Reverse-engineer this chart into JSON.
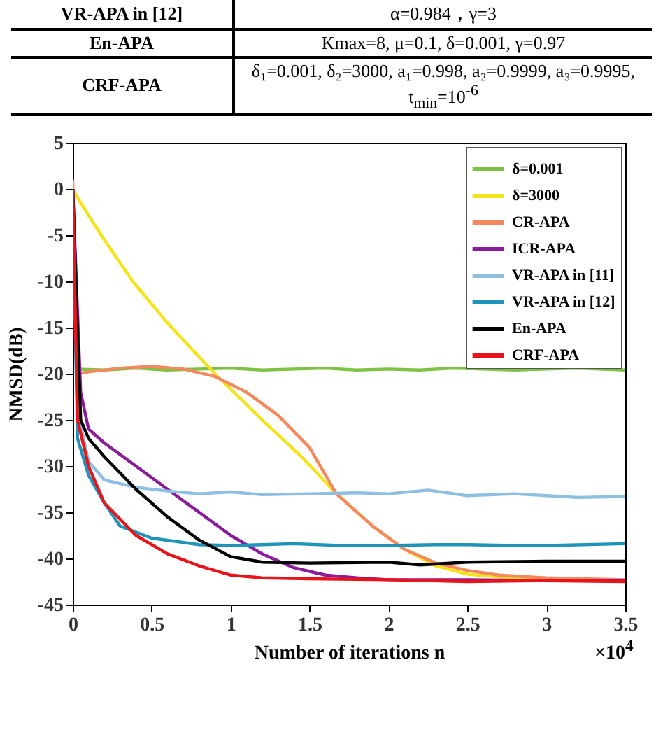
{
  "chart_data": {
    "type": "line",
    "xlabel": "Number of iterations n",
    "ylabel": "NMSD(dB)",
    "annotations": [
      "VR-APA in [12]",
      "α=0.984，γ=3",
      "En-APA",
      "Kmax=8, μ=0.1, δ=0.001, γ=0.97",
      "CRF-APA",
      "δ₁=0.001, δ₂=3000, a₁=0.998, a₂=0.9999, a₃=0.9995, t$_{min}$=10$^{-6}$",
      "×10$^{4}$"
    ],
    "xlim": [
      0,
      3.5
    ],
    "xticks": [
      0,
      0.5,
      1,
      1.5,
      2,
      2.5,
      3,
      3.5
    ],
    "ylim": [
      -45,
      5
    ],
    "yticks": [
      -45,
      -40,
      -35,
      -30,
      -25,
      -20,
      -15,
      -10,
      -5,
      0,
      5
    ],
    "grid": false,
    "legend": "top right",
    "line_style": "solid",
    "marker": "none",
    "series": [
      {
        "name": "δ=0.001",
        "color": "#7dc242",
        "x": [
          0,
          0.03,
          0.2,
          0.4,
          0.6,
          0.8,
          1.0,
          1.2,
          1.4,
          1.6,
          1.8,
          2.0,
          2.2,
          2.4,
          2.6,
          2.8,
          3.0,
          3.2,
          3.5
        ],
        "values": [
          0,
          -19.5,
          -19.6,
          -19.4,
          -19.6,
          -19.5,
          -19.4,
          -19.6,
          -19.5,
          -19.4,
          -19.6,
          -19.5,
          -19.6,
          -19.4,
          -19.5,
          -19.6,
          -19.5,
          -19.4,
          -19.6
        ]
      },
      {
        "name": "δ=3000",
        "color": "#f5e31a",
        "x": [
          0,
          0.05,
          0.18,
          0.38,
          0.6,
          0.9,
          1.2,
          1.45,
          1.67,
          1.9,
          2.1,
          2.3,
          2.5,
          2.7,
          3.0,
          3.5
        ],
        "values": [
          0,
          -1.5,
          -5,
          -10,
          -14.5,
          -20,
          -25,
          -29,
          -33,
          -36.5,
          -39,
          -40.8,
          -41.7,
          -42,
          -42.2,
          -42.4
        ]
      },
      {
        "name": "CR-APA",
        "color": "#f4895f",
        "x": [
          0,
          0.03,
          0.1,
          0.3,
          0.5,
          0.7,
          0.9,
          1.1,
          1.3,
          1.5,
          1.67,
          1.9,
          2.1,
          2.3,
          2.5,
          2.7,
          3.0,
          3.5
        ],
        "values": [
          1,
          -20,
          -19.8,
          -19.4,
          -19.2,
          -19.5,
          -20.3,
          -22,
          -24.5,
          -28,
          -33,
          -36.5,
          -39,
          -40.5,
          -41.3,
          -41.8,
          -42.1,
          -42.3
        ]
      },
      {
        "name": "ICR-APA",
        "color": "#8b1a9c",
        "x": [
          0,
          0.05,
          0.1,
          0.2,
          0.4,
          0.6,
          0.8,
          1.0,
          1.2,
          1.4,
          1.6,
          1.8,
          2.0,
          2.5,
          3.0,
          3.5
        ],
        "values": [
          0,
          -22,
          -26,
          -27.5,
          -30,
          -32.5,
          -35,
          -37.5,
          -39.5,
          -41,
          -41.8,
          -42.1,
          -42.3,
          -42.3,
          -42.4,
          -42.4
        ]
      },
      {
        "name": "VR-APA in [11]",
        "color": "#8fbfe0",
        "x": [
          0,
          0.03,
          0.1,
          0.2,
          0.4,
          0.6,
          0.8,
          1.0,
          1.2,
          1.5,
          1.8,
          2.0,
          2.25,
          2.5,
          2.8,
          3.0,
          3.2,
          3.5
        ],
        "values": [
          0,
          -24,
          -29.5,
          -31.5,
          -32.3,
          -32.7,
          -33,
          -32.8,
          -33.1,
          -33,
          -32.9,
          -33,
          -32.6,
          -33.2,
          -33,
          -33.2,
          -33.4,
          -33.3
        ]
      },
      {
        "name": "VR-APA in [12]",
        "color": "#1f93b8",
        "x": [
          0,
          0.03,
          0.1,
          0.2,
          0.3,
          0.5,
          0.8,
          1.0,
          1.2,
          1.4,
          1.7,
          2.0,
          2.3,
          2.5,
          2.8,
          3.0,
          3.5
        ],
        "values": [
          0,
          -27,
          -31,
          -34,
          -36.5,
          -37.8,
          -38.5,
          -38.6,
          -38.5,
          -38.4,
          -38.6,
          -38.6,
          -38.5,
          -38.5,
          -38.6,
          -38.6,
          -38.4
        ]
      },
      {
        "name": "En-APA",
        "color": "#000000",
        "x": [
          0,
          0.05,
          0.1,
          0.2,
          0.4,
          0.6,
          0.8,
          1.0,
          1.2,
          1.5,
          2.0,
          2.2,
          2.5,
          3.0,
          3.5
        ],
        "values": [
          0,
          -25,
          -27,
          -29,
          -32.5,
          -35.5,
          -38,
          -39.8,
          -40.4,
          -40.5,
          -40.4,
          -40.7,
          -40.4,
          -40.3,
          -40.3
        ]
      },
      {
        "name": "CRF-APA",
        "color": "#e8141c",
        "x": [
          0,
          0.03,
          0.1,
          0.2,
          0.4,
          0.6,
          0.8,
          1.0,
          1.2,
          1.5,
          2.0,
          2.5,
          3.0,
          3.5
        ],
        "values": [
          0,
          -25,
          -30,
          -34,
          -37.5,
          -39.5,
          -40.8,
          -41.8,
          -42.1,
          -42.2,
          -42.3,
          -42.5,
          -42.4,
          -42.5
        ]
      }
    ]
  }
}
